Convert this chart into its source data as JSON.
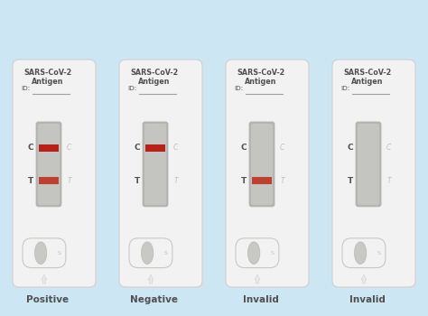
{
  "background_color": "#cce6f4",
  "card_color": "#f2f2f2",
  "card_border_color": "#d0d0d0",
  "card_shadow_color": "#e0e0de",
  "window_color": "#c4c4c0",
  "window_border_color": "#b4b4b0",
  "red_line_color_C": "#b82018",
  "red_line_color_T": "#c04030",
  "label_color": "#505050",
  "faint_label_color": "#c0c0bc",
  "id_line_color": "#a0a0a0",
  "arrow_color": "#d8d8d8",
  "arrow_fill": "#e8e8e8",
  "well_outer_color": "#e8e8e6",
  "well_outer_border": "#c8c8c4",
  "well_inner_color": "#c8c8c4",
  "well_inner_border": "#b8b8b4",
  "cards": [
    {
      "label": "Positive",
      "C_line": true,
      "T_line": true
    },
    {
      "label": "Negative",
      "C_line": true,
      "T_line": false
    },
    {
      "label": "Invalid",
      "C_line": false,
      "T_line": true
    },
    {
      "label": "Invalid",
      "C_line": false,
      "T_line": false
    }
  ],
  "title_line1": "SARS-CoV-2",
  "title_line2": "Antigen",
  "id_label": "ID:",
  "c_label": "C",
  "t_label": "T",
  "s_label": "S"
}
